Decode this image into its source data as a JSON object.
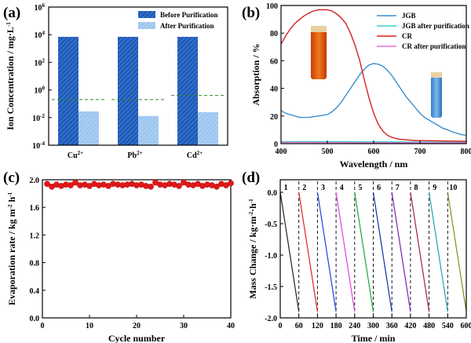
{
  "chart_data": [
    {
      "panel": "(a)",
      "type": "bar",
      "yscale": "log",
      "categories": [
        "Cu",
        "Pb",
        "Cd"
      ],
      "category_sup": [
        "2+",
        "2+",
        "2+"
      ],
      "series": [
        {
          "name": "Before Purification",
          "color": "#1f5bb8",
          "values": [
            7000,
            7000,
            7000
          ]
        },
        {
          "name": "After  Purification",
          "color": "#9dc6ef",
          "values": [
            0.028,
            0.013,
            0.025
          ]
        }
      ],
      "limit_lines": [
        0.2,
        0.2,
        0.4
      ],
      "ylabel": "Ion Concentration / mg·L",
      "ylabel_sup": "-1",
      "ylim": [
        0.0001,
        1000000
      ],
      "yticks": [
        {
          "v": 0.0001,
          "base": "10",
          "exp": "-4"
        },
        {
          "v": 0.01,
          "base": "10",
          "exp": "-2"
        },
        {
          "v": 1,
          "base": "10",
          "exp": "0"
        },
        {
          "v": 100,
          "base": "10",
          "exp": "2"
        },
        {
          "v": 10000,
          "base": "10",
          "exp": "4"
        },
        {
          "v": 1000000,
          "base": "10",
          "exp": "6"
        }
      ]
    },
    {
      "panel": "(b)",
      "type": "line",
      "xlabel": "Wavelength / nm",
      "ylabel": "Absorption / %",
      "xlim": [
        400,
        800
      ],
      "ylim": [
        0,
        100
      ],
      "xticks": [
        400,
        500,
        600,
        700,
        800
      ],
      "yticks": [
        0,
        20,
        40,
        60,
        80,
        100
      ],
      "series": [
        {
          "name": "JGB",
          "color": "#3a8fd0",
          "x": [
            400,
            410,
            420,
            430,
            440,
            450,
            460,
            470,
            480,
            490,
            500,
            510,
            520,
            530,
            540,
            550,
            560,
            570,
            580,
            590,
            600,
            610,
            620,
            630,
            640,
            650,
            660,
            670,
            680,
            690,
            700,
            710,
            720,
            730,
            740,
            750,
            760,
            770,
            780,
            790,
            800
          ],
          "y": [
            24,
            22,
            21,
            20,
            19,
            19,
            19,
            19.5,
            20,
            20.5,
            21,
            23,
            26,
            30,
            35,
            40,
            45,
            50,
            54,
            57,
            58,
            57.5,
            56,
            53,
            49,
            44,
            39,
            34,
            30,
            26,
            22,
            19,
            17,
            15,
            13,
            11,
            10,
            8.5,
            7.5,
            6.5,
            6
          ]
        },
        {
          "name": "JGB after purification",
          "color": "#35d0d0",
          "x": [
            400,
            500,
            600,
            700,
            800
          ],
          "y": [
            1.5,
            1.4,
            1.3,
            1.2,
            1.1
          ]
        },
        {
          "name": "CR",
          "color": "#d62020",
          "x": [
            400,
            410,
            420,
            430,
            440,
            450,
            460,
            470,
            480,
            490,
            500,
            510,
            520,
            530,
            540,
            550,
            560,
            570,
            580,
            590,
            600,
            610,
            620,
            630,
            640,
            650,
            660,
            670,
            680,
            690,
            700,
            720,
            740,
            760,
            780,
            800
          ],
          "y": [
            72,
            78,
            83,
            87,
            90,
            92.5,
            94.5,
            96,
            96.8,
            97,
            96.8,
            96,
            94,
            91,
            87,
            80,
            71,
            60,
            46,
            33,
            22,
            14,
            9,
            6,
            4.5,
            3.5,
            3,
            2.7,
            2.5,
            2.3,
            2.2,
            2.1,
            2,
            1.9,
            1.8,
            1.7
          ]
        },
        {
          "name": "CR  after purification",
          "color": "#e070d0",
          "x": [
            400,
            500,
            600,
            700,
            800
          ],
          "y": [
            0.9,
            0.8,
            0.7,
            0.7,
            0.6
          ]
        }
      ]
    },
    {
      "panel": "(c)",
      "type": "scatter",
      "xlabel": "Cycle number",
      "ylabel": "Evaporation rate / kg m",
      "ylabel_sup1": "-2",
      "ylabel_mid": " h",
      "ylabel_sup2": "-1",
      "xlim": [
        0,
        40
      ],
      "ylim": [
        0.0,
        2.0
      ],
      "xticks": [
        0,
        10,
        20,
        30,
        40
      ],
      "yticks": [
        0.0,
        0.4,
        0.8,
        1.2,
        1.6,
        2.0
      ],
      "x": [
        1,
        2,
        3,
        4,
        5,
        6,
        7,
        8,
        9,
        10,
        11,
        12,
        13,
        14,
        15,
        16,
        17,
        18,
        19,
        20,
        21,
        22,
        23,
        24,
        25,
        26,
        27,
        28,
        29,
        30,
        31,
        32,
        33,
        34,
        35,
        36,
        37,
        38,
        39,
        40
      ],
      "y": [
        1.94,
        1.9,
        1.93,
        1.91,
        1.93,
        1.92,
        1.96,
        1.92,
        1.93,
        1.91,
        1.94,
        1.92,
        1.93,
        1.91,
        1.94,
        1.93,
        1.92,
        1.93,
        1.94,
        1.92,
        1.93,
        1.91,
        1.9,
        1.96,
        1.93,
        1.92,
        1.94,
        1.93,
        1.91,
        1.96,
        1.93,
        1.92,
        1.94,
        1.91,
        1.93,
        1.92,
        1.9,
        1.94,
        1.92,
        1.95
      ],
      "marker_color": "#e01818"
    },
    {
      "panel": "(d)",
      "type": "line",
      "xlabel": "Time / min",
      "ylabel": "Mass Change / kg·m",
      "ylabel_sup1": "-2",
      "ylabel_mid": "·h",
      "ylabel_sup2": "-1",
      "xlim": [
        0,
        600
      ],
      "ylim": [
        -2.0,
        0.2
      ],
      "xticks": [
        0,
        60,
        120,
        180,
        240,
        300,
        360,
        420,
        480,
        540,
        600
      ],
      "yticks": [
        -2.0,
        -1.5,
        -1.0,
        -0.5,
        0.0
      ],
      "cycle_labels": [
        "1",
        "2",
        "3",
        "4",
        "5",
        "6",
        "7",
        "8",
        "9",
        "10"
      ],
      "series": [
        {
          "name": "1",
          "color": "#222222",
          "x": [
            0,
            60
          ],
          "y": [
            0.0,
            -1.9
          ]
        },
        {
          "name": "2",
          "color": "#e02020",
          "x": [
            60,
            120
          ],
          "y": [
            0.0,
            -1.9
          ]
        },
        {
          "name": "3",
          "color": "#2040e0",
          "x": [
            120,
            180
          ],
          "y": [
            0.0,
            -1.9
          ]
        },
        {
          "name": "4",
          "color": "#e040e0",
          "x": [
            180,
            240
          ],
          "y": [
            0.0,
            -1.9
          ]
        },
        {
          "name": "5",
          "color": "#20a040",
          "x": [
            240,
            300
          ],
          "y": [
            0.0,
            -1.9
          ]
        },
        {
          "name": "6",
          "color": "#1030a0",
          "x": [
            300,
            360
          ],
          "y": [
            0.0,
            -1.9
          ]
        },
        {
          "name": "7",
          "color": "#8020b0",
          "x": [
            360,
            420
          ],
          "y": [
            0.0,
            -1.9
          ]
        },
        {
          "name": "8",
          "color": "#a02050",
          "x": [
            420,
            480
          ],
          "y": [
            0.0,
            -1.9
          ]
        },
        {
          "name": "9",
          "color": "#20a0b0",
          "x": [
            480,
            540
          ],
          "y": [
            0.0,
            -1.9
          ]
        },
        {
          "name": "10",
          "color": "#8a8a20",
          "x": [
            540,
            600
          ],
          "y": [
            0.0,
            -1.9
          ]
        }
      ]
    }
  ],
  "panel_labels": [
    "(a)",
    "(b)",
    "(c)",
    "(d)"
  ]
}
